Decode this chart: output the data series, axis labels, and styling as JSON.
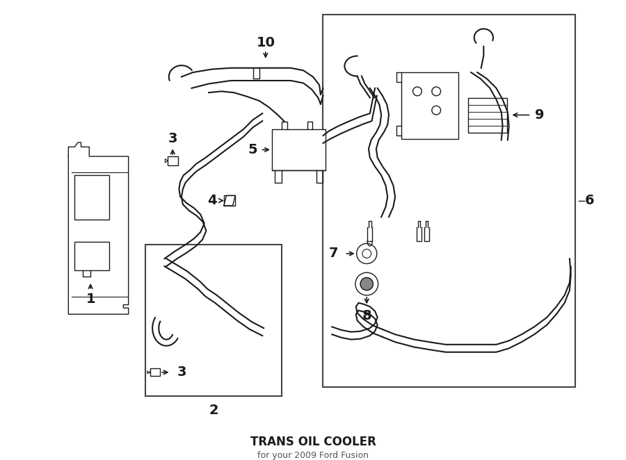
{
  "title": "TRANS OIL COOLER",
  "subtitle": "for your 2009 Ford Fusion",
  "bg": "#ffffff",
  "lc": "#1a1a1a",
  "box_lc": "#444444",
  "lw_thick": 2.2,
  "lw_med": 1.5,
  "lw_thin": 1.0,
  "label_fs": 14
}
